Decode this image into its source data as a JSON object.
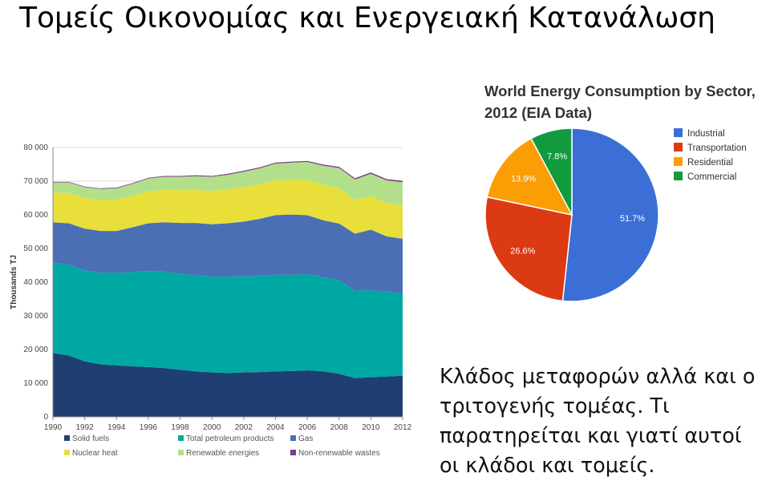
{
  "slide": {
    "title": "Τομείς Οικονομίας και Ενεργειακή Κατανάλωση",
    "caption": "Κλάδος μεταφορών αλλά και ο τριτογενής τομέας. Τι παρατηρείται και γιατί αυτοί οι κλάδοι και τομείς."
  },
  "chart_data": [
    {
      "type": "area",
      "stacked": true,
      "title": "",
      "xlabel": "",
      "ylabel": "Thousands TJ",
      "xlim": [
        1990,
        2012
      ],
      "ylim": [
        0,
        80000
      ],
      "yticks": [
        0,
        10000,
        20000,
        30000,
        40000,
        50000,
        60000,
        70000,
        80000
      ],
      "ytick_labels": [
        "0",
        "10 000",
        "20 000",
        "30 000",
        "40 000",
        "50 000",
        "60 000",
        "70 000",
        "80 000"
      ],
      "xticks": [
        1990,
        1992,
        1994,
        1996,
        1998,
        2000,
        2002,
        2004,
        2006,
        2008,
        2010,
        2012
      ],
      "legend_position": "bottom",
      "grid": true,
      "x": [
        1990,
        1991,
        1992,
        1993,
        1994,
        1995,
        1996,
        1997,
        1998,
        1999,
        2000,
        2001,
        2002,
        2003,
        2004,
        2005,
        2006,
        2007,
        2008,
        2009,
        2010,
        2011,
        2012
      ],
      "series": [
        {
          "name": "Solid fuels",
          "color": "#1f3f73",
          "values": [
            19000,
            18200,
            16500,
            15600,
            15300,
            15000,
            14800,
            14500,
            14000,
            13500,
            13200,
            13000,
            13200,
            13300,
            13500,
            13600,
            13800,
            13500,
            12800,
            11500,
            11800,
            12000,
            12200
          ]
        },
        {
          "name": "Total petroleum products",
          "color": "#00a8a4",
          "values": [
            26800,
            27000,
            27000,
            27200,
            27400,
            28000,
            28500,
            28600,
            28500,
            28600,
            28400,
            28700,
            28500,
            28600,
            28700,
            28600,
            28600,
            28000,
            27800,
            26000,
            25800,
            25200,
            24300
          ]
        },
        {
          "name": "Gas",
          "color": "#4a6fb5",
          "values": [
            12000,
            12300,
            12400,
            12400,
            12500,
            13300,
            14200,
            14700,
            15100,
            15500,
            15600,
            15800,
            16300,
            16900,
            17700,
            17900,
            17500,
            16900,
            16800,
            16900,
            18000,
            16400,
            16400
          ]
        },
        {
          "name": "Nuclear heat",
          "color": "#e8df3a",
          "values": [
            8800,
            9000,
            9100,
            9200,
            9300,
            9300,
            9500,
            9600,
            9700,
            9800,
            9900,
            10100,
            10300,
            10300,
            10400,
            10300,
            10400,
            10500,
            10500,
            10000,
            10000,
            9900,
            9800
          ]
        },
        {
          "name": "Renewable energies",
          "color": "#b2e08a",
          "values": [
            3000,
            3100,
            3200,
            3300,
            3400,
            3600,
            3800,
            3900,
            4000,
            4100,
            4200,
            4300,
            4500,
            4700,
            4900,
            5100,
            5400,
            5700,
            6000,
            6100,
            6600,
            6700,
            7000
          ]
        },
        {
          "name": "Non-renewable wastes",
          "color": "#7d3a8c",
          "values": [
            200,
            200,
            200,
            200,
            200,
            200,
            200,
            250,
            250,
            250,
            250,
            300,
            300,
            300,
            300,
            300,
            300,
            350,
            350,
            350,
            400,
            400,
            400
          ]
        }
      ]
    },
    {
      "type": "pie",
      "title": "World Energy Consumption by Sector, 2012 (EIA Data)",
      "title_lines": [
        "World Energy Consumption by Sector,",
        "2012 (EIA Data)"
      ],
      "legend_position": "right",
      "slices": [
        {
          "name": "Industrial",
          "value": 51.7,
          "label": "51.7%",
          "color": "#3b6fd6"
        },
        {
          "name": "Transportation",
          "value": 26.6,
          "label": "26.6%",
          "color": "#dc3a12"
        },
        {
          "name": "Residential",
          "value": 13.9,
          "label": "13.9%",
          "color": "#fb9d05"
        },
        {
          "name": "Commercial",
          "value": 7.8,
          "label": "7.8%",
          "color": "#119a3e"
        }
      ]
    }
  ]
}
